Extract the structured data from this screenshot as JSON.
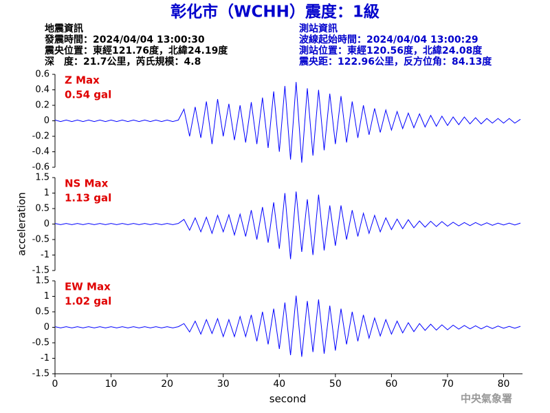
{
  "title": "彰化市（WCHH）震度：1級",
  "event_info": [
    "地震資訊",
    "發震時間：2024/04/04 13:00:30",
    "震央位置：東經121.76度，北緯24.19度",
    "深　度：21.7公里，芮氏規模：4.8"
  ],
  "station_info": [
    "測站資訊",
    "波線起始時間：2024/04/04 13:00:29",
    "測站位置：東經120.56度，北緯24.08度",
    "震央距：122.96公里，反方位角：84.13度"
  ],
  "watermark": "中央氣象署",
  "chart_data": [
    {
      "type": "line",
      "annotations": [
        "Z Max",
        "0.54 gal"
      ],
      "color": "#0000ff",
      "xlim": [
        0,
        83
      ],
      "ylim": [
        -0.6,
        0.6
      ],
      "yticks": [
        0.6,
        0.4,
        0.2,
        0,
        -0.2,
        -0.4,
        -0.6
      ],
      "x": [
        0,
        1,
        2,
        3,
        4,
        5,
        6,
        7,
        8,
        9,
        10,
        11,
        12,
        13,
        14,
        15,
        16,
        17,
        18,
        19,
        20,
        21,
        22,
        23,
        24,
        25,
        26,
        27,
        28,
        29,
        30,
        31,
        32,
        33,
        34,
        35,
        36,
        37,
        38,
        39,
        40,
        41,
        42,
        43,
        44,
        45,
        46,
        47,
        48,
        49,
        50,
        51,
        52,
        53,
        54,
        55,
        56,
        57,
        58,
        59,
        60,
        61,
        62,
        63,
        64,
        65,
        66,
        67,
        68,
        69,
        70,
        71,
        72,
        73,
        74,
        75,
        76,
        77,
        78,
        79,
        80,
        81,
        82,
        83
      ],
      "values": [
        0.01,
        -0.01,
        0.01,
        -0.01,
        0.01,
        -0.01,
        0.01,
        -0.01,
        0.01,
        -0.01,
        0.01,
        -0.01,
        0.01,
        -0.01,
        0.01,
        -0.01,
        0.01,
        -0.01,
        0.01,
        -0.01,
        0.01,
        -0.01,
        0.01,
        0.15,
        -0.2,
        0.18,
        -0.22,
        0.25,
        -0.3,
        0.28,
        -0.2,
        0.22,
        -0.25,
        0.2,
        -0.28,
        0.24,
        -0.3,
        0.3,
        -0.35,
        0.38,
        -0.4,
        0.45,
        -0.5,
        0.5,
        -0.54,
        0.42,
        -0.45,
        0.4,
        -0.38,
        0.35,
        -0.3,
        0.32,
        -0.28,
        0.25,
        -0.22,
        0.2,
        -0.18,
        0.16,
        -0.15,
        0.14,
        -0.12,
        0.12,
        -0.1,
        0.1,
        -0.09,
        0.09,
        -0.08,
        0.07,
        -0.07,
        0.06,
        -0.06,
        0.05,
        -0.05,
        0.05,
        -0.04,
        0.04,
        -0.04,
        0.03,
        -0.03,
        0.03,
        -0.03,
        0.03,
        -0.03,
        0.02
      ]
    },
    {
      "type": "line",
      "annotations": [
        "NS Max",
        "1.13 gal"
      ],
      "color": "#0000ff",
      "ylabel": "acceleration",
      "xlim": [
        0,
        83
      ],
      "ylim": [
        -1.5,
        1.5
      ],
      "yticks": [
        1.5,
        1,
        0.5,
        0,
        -0.5,
        -1,
        -1.5
      ],
      "x": [
        0,
        1,
        2,
        3,
        4,
        5,
        6,
        7,
        8,
        9,
        10,
        11,
        12,
        13,
        14,
        15,
        16,
        17,
        18,
        19,
        20,
        21,
        22,
        23,
        24,
        25,
        26,
        27,
        28,
        29,
        30,
        31,
        32,
        33,
        34,
        35,
        36,
        37,
        38,
        39,
        40,
        41,
        42,
        43,
        44,
        45,
        46,
        47,
        48,
        49,
        50,
        51,
        52,
        53,
        54,
        55,
        56,
        57,
        58,
        59,
        60,
        61,
        62,
        63,
        64,
        65,
        66,
        67,
        68,
        69,
        70,
        71,
        72,
        73,
        74,
        75,
        76,
        77,
        78,
        79,
        80,
        81,
        82,
        83
      ],
      "values": [
        0.02,
        -0.02,
        0.02,
        -0.02,
        0.02,
        -0.02,
        0.02,
        -0.02,
        0.02,
        -0.02,
        0.02,
        -0.02,
        0.02,
        -0.02,
        0.02,
        -0.02,
        0.02,
        -0.02,
        0.02,
        -0.02,
        0.02,
        -0.02,
        0.02,
        0.15,
        -0.2,
        0.2,
        -0.25,
        0.22,
        -0.3,
        0.28,
        -0.25,
        0.3,
        -0.35,
        0.32,
        -0.4,
        0.45,
        -0.5,
        0.55,
        -0.6,
        0.7,
        -0.8,
        1.0,
        -1.13,
        1.05,
        -0.9,
        0.8,
        -1.0,
        0.95,
        -0.85,
        0.6,
        -0.7,
        0.6,
        -0.5,
        0.45,
        -0.4,
        0.35,
        -0.3,
        0.28,
        -0.25,
        0.2,
        -0.18,
        0.16,
        -0.15,
        0.14,
        -0.12,
        0.1,
        -0.1,
        0.09,
        -0.08,
        0.08,
        -0.07,
        0.06,
        -0.06,
        0.05,
        -0.05,
        0.05,
        -0.04,
        0.04,
        -0.04,
        0.03,
        -0.03,
        0.03,
        -0.03,
        0.03
      ]
    },
    {
      "type": "line",
      "annotations": [
        "EW Max",
        "1.02 gal"
      ],
      "color": "#0000ff",
      "xlabel": "second",
      "xlim": [
        0,
        83
      ],
      "xticks": [
        0,
        10,
        20,
        30,
        40,
        50,
        60,
        70,
        80
      ],
      "ylim": [
        -1.5,
        1.5
      ],
      "yticks": [
        1.5,
        1,
        0.5,
        0,
        -0.5,
        -1,
        -1.5
      ],
      "x": [
        0,
        1,
        2,
        3,
        4,
        5,
        6,
        7,
        8,
        9,
        10,
        11,
        12,
        13,
        14,
        15,
        16,
        17,
        18,
        19,
        20,
        21,
        22,
        23,
        24,
        25,
        26,
        27,
        28,
        29,
        30,
        31,
        32,
        33,
        34,
        35,
        36,
        37,
        38,
        39,
        40,
        41,
        42,
        43,
        44,
        45,
        46,
        47,
        48,
        49,
        50,
        51,
        52,
        53,
        54,
        55,
        56,
        57,
        58,
        59,
        60,
        61,
        62,
        63,
        64,
        65,
        66,
        67,
        68,
        69,
        70,
        71,
        72,
        73,
        74,
        75,
        76,
        77,
        78,
        79,
        80,
        81,
        82,
        83
      ],
      "values": [
        0.02,
        -0.02,
        0.02,
        -0.02,
        0.02,
        -0.02,
        0.02,
        -0.02,
        0.02,
        -0.02,
        0.02,
        -0.02,
        0.02,
        -0.02,
        0.02,
        -0.02,
        0.02,
        -0.02,
        0.02,
        -0.02,
        0.02,
        -0.02,
        0.02,
        0.12,
        -0.15,
        0.2,
        -0.22,
        0.25,
        -0.2,
        0.28,
        -0.3,
        0.25,
        -0.3,
        0.35,
        -0.3,
        0.4,
        -0.45,
        0.5,
        -0.55,
        0.6,
        -0.7,
        0.8,
        -0.9,
        1.02,
        -0.95,
        0.85,
        -0.8,
        0.9,
        -0.85,
        0.7,
        -0.75,
        0.6,
        -0.55,
        0.5,
        -0.45,
        0.4,
        -0.35,
        0.3,
        -0.28,
        0.25,
        -0.22,
        0.2,
        -0.18,
        0.15,
        -0.14,
        0.12,
        -0.1,
        0.1,
        -0.09,
        0.08,
        -0.08,
        0.07,
        -0.06,
        0.06,
        -0.05,
        0.05,
        -0.05,
        0.04,
        -0.04,
        0.04,
        -0.03,
        0.03,
        -0.03,
        0.03
      ]
    }
  ]
}
